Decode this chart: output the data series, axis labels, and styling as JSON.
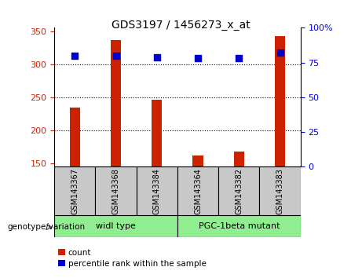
{
  "title": "GDS3197 / 1456273_x_at",
  "samples": [
    "GSM143367",
    "GSM143368",
    "GSM143384",
    "GSM143364",
    "GSM143382",
    "GSM143383"
  ],
  "counts": [
    235,
    336,
    246,
    162,
    168,
    342
  ],
  "percentile_ranks": [
    80,
    80,
    79,
    78,
    78,
    82
  ],
  "group1_label": "widl type",
  "group2_label": "PGC-1beta mutant",
  "bar_color": "#CC2200",
  "dot_color": "#0000CC",
  "ylim_left": [
    145,
    355
  ],
  "ylim_right": [
    0,
    100
  ],
  "yticks_left": [
    150,
    200,
    250,
    300,
    350
  ],
  "yticks_right": [
    0,
    25,
    50,
    75,
    100
  ],
  "ytick_labels_right": [
    "0",
    "25",
    "50",
    "75",
    "100%"
  ],
  "grid_values": [
    200,
    250,
    300
  ],
  "bg_color": "#ffffff",
  "label_color_left": "#CC2200",
  "label_color_right": "#0000CC",
  "group_box_color": "#c8c8c8",
  "group_label_bg": "#90EE90",
  "genotype_label": "genotype/variation",
  "legend_count": "count",
  "legend_pct": "percentile rank within the sample"
}
